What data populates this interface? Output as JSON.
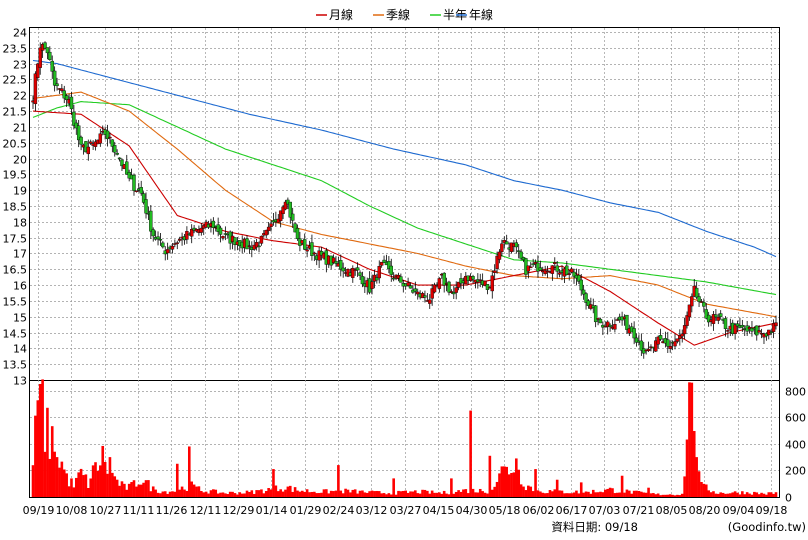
{
  "chart_data": {
    "type": "candlestick",
    "x_date_labels": [
      "09/19",
      "10/08",
      "10/27",
      "11/11",
      "11/26",
      "12/11",
      "12/29",
      "01/14",
      "01/29",
      "02/24",
      "03/12",
      "03/27",
      "04/15",
      "04/30",
      "05/18",
      "06/02",
      "06/17",
      "07/03",
      "07/21",
      "08/05",
      "08/20",
      "09/04",
      "09/18"
    ],
    "price_axis": {
      "ylim": [
        13,
        24
      ],
      "ticks": [
        "13",
        "13.5",
        "14",
        "14.5",
        "15",
        "15.5",
        "16",
        "16.5",
        "17",
        "17.5",
        "18",
        "18.5",
        "19",
        "19.5",
        "20",
        "20.5",
        "21",
        "21.5",
        "22",
        "22.5",
        "23",
        "23.5",
        "24"
      ]
    },
    "volume_axis": {
      "ylim": [
        0,
        880
      ],
      "ticks": [
        "0",
        "200",
        "400",
        "600",
        "800"
      ]
    },
    "legend": [
      {
        "label": "月線",
        "color": "#cc0000"
      },
      {
        "label": "季線",
        "color": "#e06a10"
      },
      {
        "label": "半年",
        "color": "#22cc22"
      },
      {
        "label": "年線",
        "color": "#1e6ad0"
      }
    ],
    "price_anchors": [
      [
        0,
        22.0
      ],
      [
        3,
        23.6
      ],
      [
        6,
        23.4
      ],
      [
        9,
        22.3
      ],
      [
        12,
        22.1
      ],
      [
        15,
        21.8
      ],
      [
        20,
        20.3
      ],
      [
        25,
        20.4
      ],
      [
        30,
        20.8
      ],
      [
        35,
        20.2
      ],
      [
        40,
        19.3
      ],
      [
        45,
        18.9
      ],
      [
        50,
        17.6
      ],
      [
        55,
        17.1
      ],
      [
        60,
        17.4
      ],
      [
        65,
        17.6
      ],
      [
        70,
        17.8
      ],
      [
        75,
        17.9
      ],
      [
        80,
        17.5
      ],
      [
        85,
        17.4
      ],
      [
        90,
        17.2
      ],
      [
        95,
        17.4
      ],
      [
        100,
        17.9
      ],
      [
        105,
        18.8
      ],
      [
        110,
        17.4
      ],
      [
        115,
        17.1
      ],
      [
        120,
        16.9
      ],
      [
        125,
        16.7
      ],
      [
        130,
        16.5
      ],
      [
        135,
        16.4
      ],
      [
        140,
        15.9
      ],
      [
        145,
        16.6
      ],
      [
        150,
        16.3
      ],
      [
        155,
        16.0
      ],
      [
        160,
        15.7
      ],
      [
        165,
        15.6
      ],
      [
        170,
        16.2
      ],
      [
        175,
        15.7
      ],
      [
        180,
        16.3
      ],
      [
        185,
        16.1
      ],
      [
        190,
        16.0
      ],
      [
        195,
        17.4
      ],
      [
        200,
        17.2
      ],
      [
        205,
        16.5
      ],
      [
        210,
        16.6
      ],
      [
        215,
        16.6
      ],
      [
        220,
        16.5
      ],
      [
        225,
        16.3
      ],
      [
        230,
        15.6
      ],
      [
        235,
        14.8
      ],
      [
        240,
        14.8
      ],
      [
        245,
        14.9
      ],
      [
        250,
        14.5
      ],
      [
        255,
        13.8
      ],
      [
        260,
        14.2
      ],
      [
        265,
        14.1
      ],
      [
        270,
        14.4
      ],
      [
        275,
        15.8
      ],
      [
        280,
        15.0
      ],
      [
        285,
        14.9
      ],
      [
        290,
        14.6
      ],
      [
        295,
        14.6
      ],
      [
        300,
        14.5
      ],
      [
        305,
        14.5
      ],
      [
        309,
        14.7
      ]
    ],
    "ma_month_anchors": [
      [
        0,
        21.5
      ],
      [
        20,
        21.4
      ],
      [
        40,
        20.4
      ],
      [
        60,
        18.2
      ],
      [
        80,
        17.7
      ],
      [
        100,
        17.4
      ],
      [
        120,
        17.2
      ],
      [
        140,
        16.5
      ],
      [
        160,
        16.0
      ],
      [
        180,
        16.0
      ],
      [
        200,
        16.3
      ],
      [
        220,
        16.6
      ],
      [
        240,
        15.8
      ],
      [
        260,
        14.8
      ],
      [
        275,
        14.1
      ],
      [
        290,
        14.5
      ],
      [
        309,
        14.8
      ]
    ],
    "ma_quarter_anchors": [
      [
        0,
        21.9
      ],
      [
        20,
        22.1
      ],
      [
        40,
        21.5
      ],
      [
        60,
        20.3
      ],
      [
        80,
        19.0
      ],
      [
        100,
        18.0
      ],
      [
        120,
        17.6
      ],
      [
        140,
        17.3
      ],
      [
        160,
        17.0
      ],
      [
        180,
        16.6
      ],
      [
        200,
        16.3
      ],
      [
        220,
        16.2
      ],
      [
        240,
        16.3
      ],
      [
        260,
        16.0
      ],
      [
        280,
        15.4
      ],
      [
        309,
        15.0
      ]
    ],
    "ma_half_anchors": [
      [
        0,
        21.3
      ],
      [
        10,
        21.6
      ],
      [
        20,
        21.8
      ],
      [
        40,
        21.7
      ],
      [
        60,
        21.0
      ],
      [
        80,
        20.3
      ],
      [
        100,
        19.8
      ],
      [
        120,
        19.3
      ],
      [
        140,
        18.5
      ],
      [
        160,
        17.8
      ],
      [
        180,
        17.3
      ],
      [
        200,
        16.8
      ],
      [
        220,
        16.7
      ],
      [
        240,
        16.5
      ],
      [
        260,
        16.3
      ],
      [
        280,
        16.1
      ],
      [
        309,
        15.7
      ]
    ],
    "ma_year_anchors": [
      [
        0,
        23.1
      ],
      [
        10,
        23.0
      ],
      [
        30,
        22.6
      ],
      [
        60,
        22.0
      ],
      [
        90,
        21.4
      ],
      [
        120,
        20.9
      ],
      [
        150,
        20.3
      ],
      [
        180,
        19.8
      ],
      [
        200,
        19.3
      ],
      [
        220,
        19.0
      ],
      [
        240,
        18.6
      ],
      [
        260,
        18.3
      ],
      [
        280,
        17.7
      ],
      [
        300,
        17.2
      ],
      [
        309,
        16.9
      ]
    ],
    "volume_anchors": [
      [
        0,
        240
      ],
      [
        3,
        850
      ],
      [
        5,
        500
      ],
      [
        8,
        420
      ],
      [
        11,
        300
      ],
      [
        14,
        150
      ],
      [
        17,
        80
      ],
      [
        20,
        180
      ],
      [
        23,
        100
      ],
      [
        26,
        220
      ],
      [
        29,
        300
      ],
      [
        32,
        180
      ],
      [
        35,
        120
      ],
      [
        38,
        70
      ],
      [
        41,
        80
      ],
      [
        45,
        140
      ],
      [
        50,
        60
      ],
      [
        55,
        40
      ],
      [
        60,
        50
      ],
      [
        65,
        90
      ],
      [
        70,
        50
      ],
      [
        75,
        40
      ],
      [
        80,
        30
      ],
      [
        90,
        35
      ],
      [
        100,
        60
      ],
      [
        105,
        75
      ],
      [
        110,
        50
      ],
      [
        120,
        40
      ],
      [
        130,
        45
      ],
      [
        140,
        35
      ],
      [
        150,
        30
      ],
      [
        160,
        40
      ],
      [
        170,
        30
      ],
      [
        180,
        50
      ],
      [
        190,
        45
      ],
      [
        195,
        180
      ],
      [
        200,
        240
      ],
      [
        205,
        90
      ],
      [
        210,
        45
      ],
      [
        220,
        40
      ],
      [
        230,
        35
      ],
      [
        240,
        55
      ],
      [
        250,
        35
      ],
      [
        260,
        20
      ],
      [
        270,
        20
      ],
      [
        274,
        860
      ],
      [
        278,
        80
      ],
      [
        285,
        30
      ],
      [
        295,
        35
      ],
      [
        305,
        25
      ],
      [
        309,
        30
      ]
    ],
    "volume_spikes": [
      [
        3,
        850
      ],
      [
        10,
        300
      ],
      [
        32,
        300
      ],
      [
        60,
        250
      ],
      [
        65,
        380
      ],
      [
        100,
        210
      ],
      [
        127,
        240
      ],
      [
        150,
        140
      ],
      [
        174,
        140
      ],
      [
        182,
        650
      ],
      [
        190,
        310
      ],
      [
        195,
        230
      ],
      [
        201,
        290
      ],
      [
        209,
        210
      ],
      [
        218,
        130
      ],
      [
        228,
        110
      ],
      [
        245,
        160
      ],
      [
        256,
        70
      ],
      [
        274,
        860
      ],
      [
        276,
        300
      ]
    ],
    "n_days": 310
  },
  "footer": {
    "data_date_label": "資料日期: 09/18",
    "source": "(Goodinfo.tw)"
  }
}
